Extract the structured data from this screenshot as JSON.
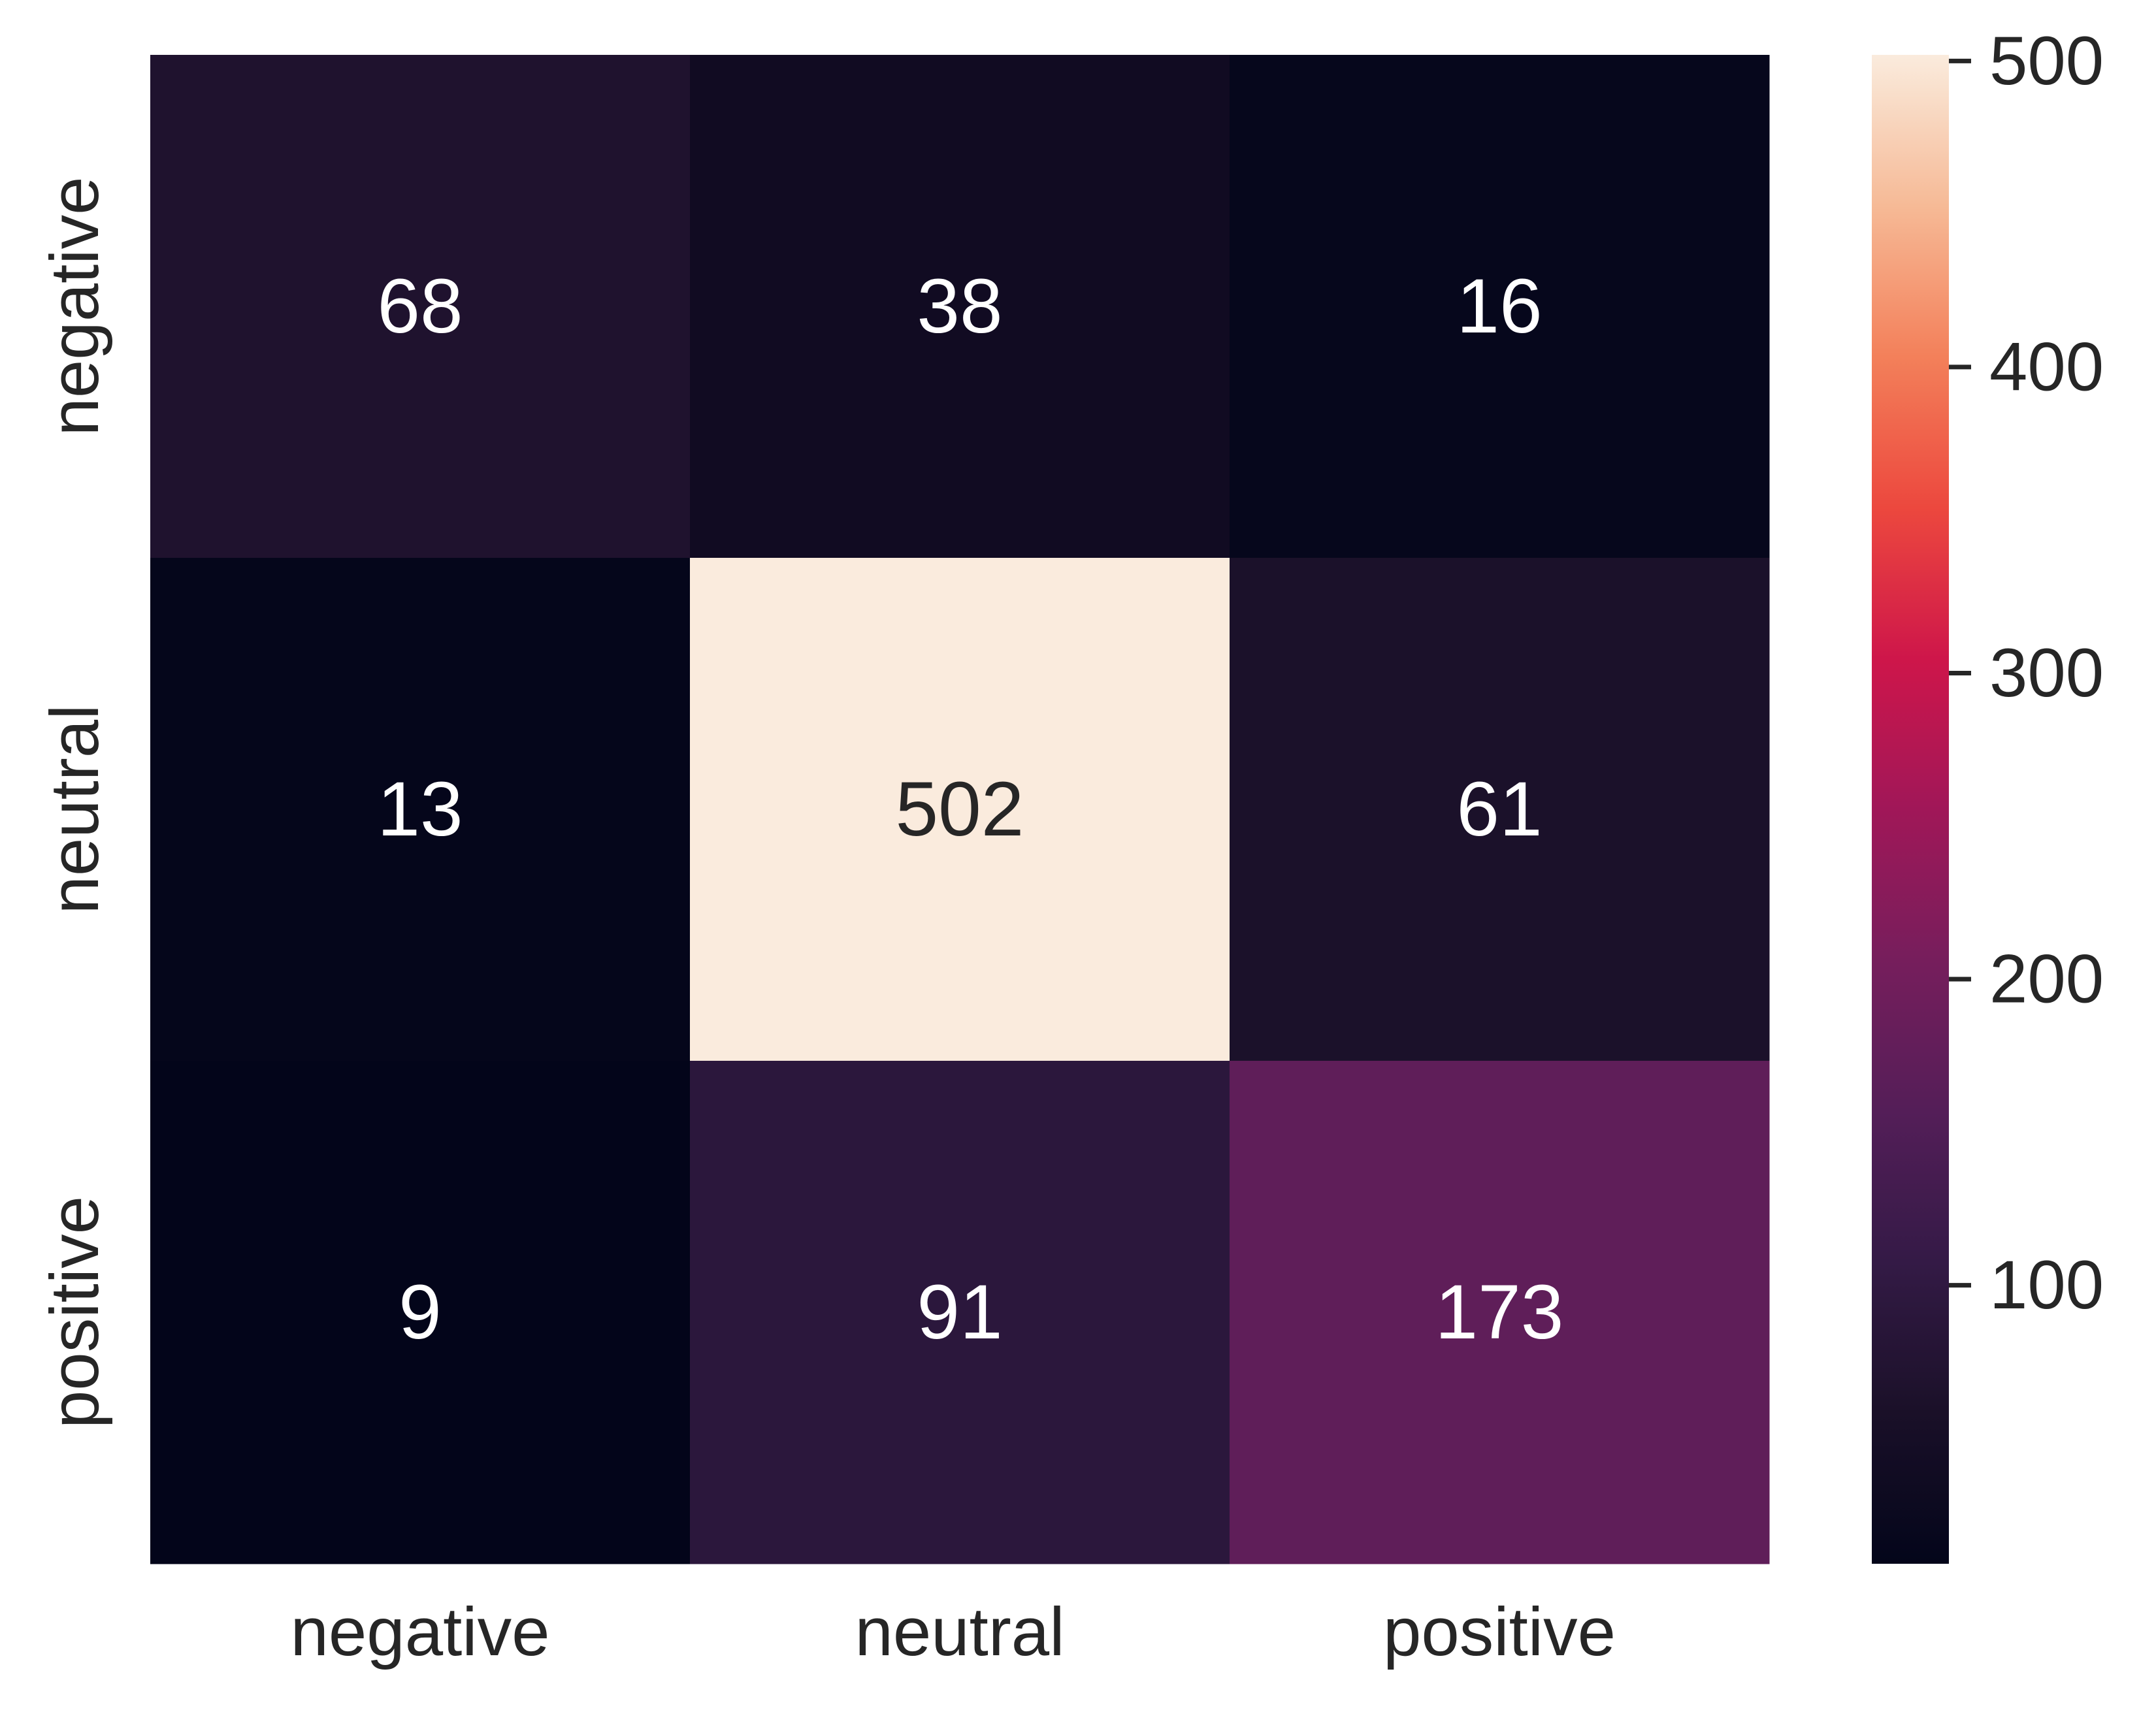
{
  "chart_data": {
    "type": "heatmap",
    "title": "",
    "xlabel": "",
    "ylabel": "",
    "x_categories": [
      "negative",
      "neutral",
      "positive"
    ],
    "y_categories": [
      "negative",
      "neutral",
      "positive"
    ],
    "values": [
      [
        68,
        38,
        16
      ],
      [
        13,
        502,
        61
      ],
      [
        9,
        91,
        173
      ]
    ],
    "colorbar": {
      "range": [
        9,
        502
      ],
      "ticks": [
        100,
        200,
        300,
        400,
        500
      ],
      "colormap": "rocket",
      "position": "right"
    },
    "colors": {
      "low": "#03051a",
      "high": "#faebdd",
      "annotation_light": "#ffffff",
      "annotation_dark": "#262626"
    }
  }
}
